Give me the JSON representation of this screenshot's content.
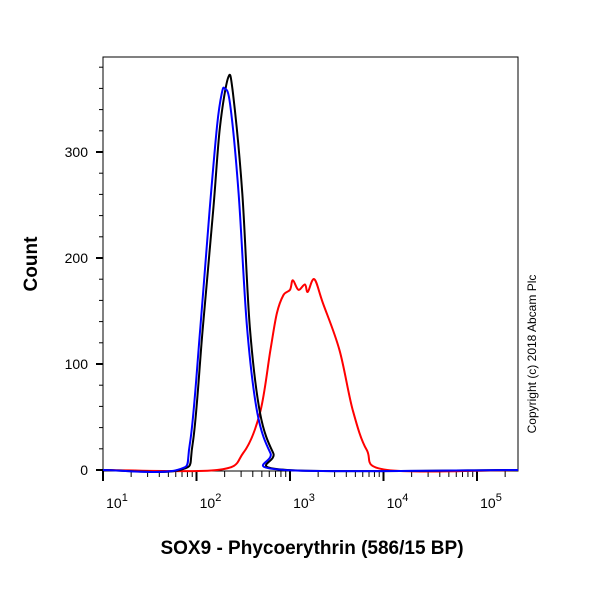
{
  "chart_data": {
    "type": "line",
    "xlabel": "SOX9 - Phycoerythrin (586/15 BP)",
    "ylabel": "Count",
    "x_scale": "log",
    "xlim": [
      10,
      275000
    ],
    "ylim": [
      0,
      390
    ],
    "x_ticks": [
      {
        "value": 10,
        "base": "10",
        "exp": "1"
      },
      {
        "value": 100,
        "base": "10",
        "exp": "2"
      },
      {
        "value": 1000,
        "base": "10",
        "exp": "3"
      },
      {
        "value": 10000,
        "base": "10",
        "exp": "4"
      },
      {
        "value": 100000,
        "base": "10",
        "exp": "5"
      }
    ],
    "y_ticks": [
      {
        "value": 0,
        "label": "0"
      },
      {
        "value": 100,
        "label": "100"
      },
      {
        "value": 200,
        "label": "200"
      },
      {
        "value": 300,
        "label": "300"
      }
    ],
    "grid": false,
    "series": [
      {
        "color": "#ff0000",
        "x": [
          10,
          166,
          316,
          478,
          617,
          724,
          851,
          1000,
          1072,
          1230,
          1445,
          1549,
          1820,
          2239,
          3388,
          4677,
          6607,
          10965,
          275000
        ],
        "y": [
          0,
          0,
          16,
          54,
          113,
          148,
          165,
          170,
          179,
          170,
          175,
          168,
          180,
          158,
          113,
          57,
          19,
          0,
          0
        ]
      },
      {
        "color": "#000000",
        "x": [
          10,
          66,
          91,
          117,
          151,
          178,
          218,
          245,
          309,
          372,
          478,
          661,
          933,
          275000
        ],
        "y": [
          0,
          0,
          25,
          135,
          245,
          323,
          370,
          356,
          261,
          135,
          54,
          16,
          0,
          0
        ]
      },
      {
        "color": "#0000ff",
        "x": [
          10,
          62,
          85,
          110,
          138,
          166,
          186,
          200,
          229,
          282,
          347,
          447,
          617,
          871,
          275000
        ],
        "y": [
          0,
          0,
          25,
          135,
          245,
          325,
          355,
          360,
          345,
          261,
          135,
          54,
          16,
          0,
          0
        ]
      }
    ]
  },
  "copyright": "Copyright (c) 2018 Abcam Plc"
}
